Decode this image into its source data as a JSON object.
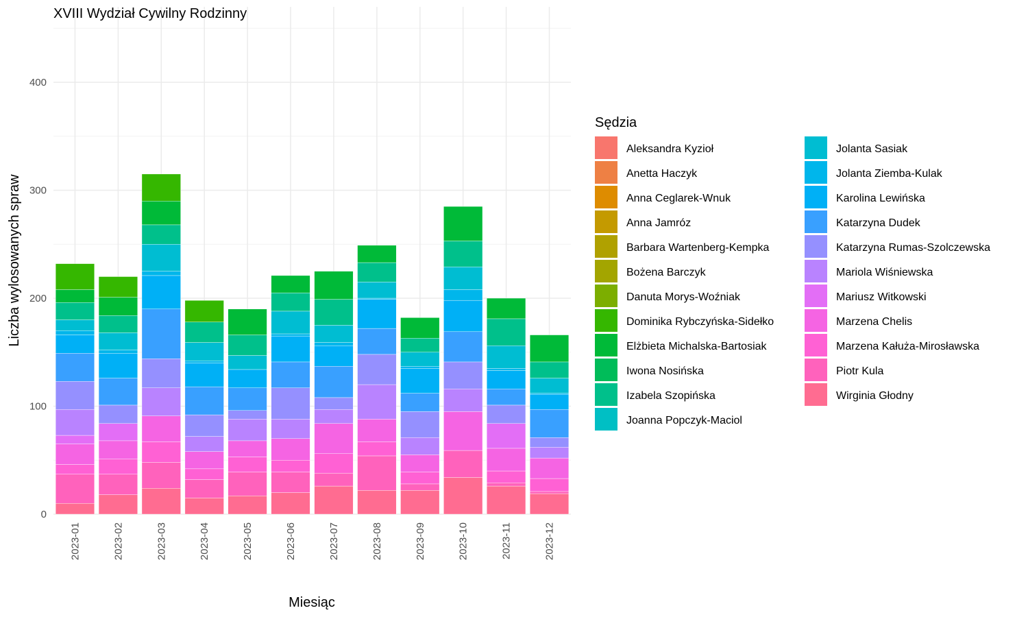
{
  "chart_data": {
    "type": "bar",
    "stacked": true,
    "title": "XVIII Wydział Cywilny Rodzinny",
    "xlabel": "Miesiąc",
    "ylabel": "Liczba wylosowanych spraw",
    "legend_title": "Sędzia",
    "legend_position": "right",
    "grid": true,
    "ylim": [
      0,
      460
    ],
    "yticks": [
      0,
      100,
      200,
      300,
      400
    ],
    "categories": [
      "2023-01",
      "2023-02",
      "2023-03",
      "2023-04",
      "2023-05",
      "2023-06",
      "2023-07",
      "2023-08",
      "2023-09",
      "2023-10",
      "2023-11",
      "2023-12"
    ],
    "series": [
      {
        "name": "Wirginia Głodny",
        "color": "#FF6C91",
        "values": [
          10,
          18,
          24,
          15,
          17,
          20,
          26,
          22,
          22,
          34,
          26,
          19
        ]
      },
      {
        "name": "Piotr Kula",
        "color": "#FF62BC",
        "values": [
          27,
          19,
          24,
          17,
          22,
          19,
          12,
          32,
          6,
          25,
          3,
          2
        ]
      },
      {
        "name": "Marzena Kałuża-Mirosławska",
        "color": "#FF61D4",
        "values": [
          9,
          14,
          19,
          10,
          14,
          11,
          18,
          13,
          11,
          0,
          11,
          12
        ]
      },
      {
        "name": "Marzena Chelis",
        "color": "#F564E3",
        "values": [
          19,
          17,
          24,
          16,
          15,
          20,
          28,
          21,
          16,
          36,
          21,
          19
        ]
      },
      {
        "name": "Mariusz Witkowski",
        "color": "#E36EF6",
        "values": [
          8,
          16,
          0,
          0,
          0,
          0,
          0,
          0,
          0,
          0,
          23,
          0
        ]
      },
      {
        "name": "Mariola Wiśniewska",
        "color": "#B983FF",
        "values": [
          24,
          0,
          26,
          14,
          20,
          18,
          13,
          32,
          16,
          21,
          0,
          10
        ]
      },
      {
        "name": "Katarzyna Rumas-Szolczewska",
        "color": "#9590FF",
        "values": [
          26,
          17,
          27,
          20,
          8,
          29,
          11,
          28,
          24,
          25,
          17,
          9
        ]
      },
      {
        "name": "Katarzyna Dudek",
        "color": "#39A0FF",
        "values": [
          26,
          25,
          46,
          26,
          21,
          24,
          29,
          24,
          17,
          28,
          15,
          26
        ]
      },
      {
        "name": "Karolina Lewińska",
        "color": "#00B0F6",
        "values": [
          17,
          23,
          31,
          22,
          17,
          24,
          19,
          27,
          23,
          29,
          17,
          14
        ]
      },
      {
        "name": "Jolanta Ziemba-Kulak",
        "color": "#00B6EB",
        "values": [
          4,
          3,
          4,
          2,
          0,
          2,
          3,
          1,
          2,
          10,
          2,
          1
        ]
      },
      {
        "name": "Jolanta Sasiak",
        "color": "#00BDD2",
        "values": [
          10,
          16,
          25,
          17,
          13,
          21,
          16,
          15,
          13,
          21,
          21,
          14
        ]
      },
      {
        "name": "Joanna Popczyk-Maciol",
        "color": "#00BFC4",
        "values": [
          0,
          0,
          0,
          0,
          0,
          0,
          0,
          0,
          0,
          0,
          0,
          0
        ]
      },
      {
        "name": "Izabela Szopińska",
        "color": "#00C08B",
        "values": [
          16,
          16,
          18,
          19,
          19,
          17,
          24,
          18,
          13,
          24,
          25,
          15
        ]
      },
      {
        "name": "Iwona Nosińska",
        "color": "#00BC59",
        "values": [
          0,
          0,
          0,
          0,
          0,
          0,
          0,
          0,
          0,
          0,
          0,
          0
        ]
      },
      {
        "name": "Elżbieta Michalska-Bartosiak",
        "color": "#00BA38",
        "values": [
          12,
          17,
          22,
          0,
          24,
          16,
          26,
          16,
          19,
          32,
          19,
          25
        ]
      },
      {
        "name": "Dominika Rybczyńska-Sidełko",
        "color": "#35B700",
        "values": [
          24,
          19,
          25,
          20,
          0,
          0,
          0,
          0,
          0,
          0,
          0,
          0
        ]
      },
      {
        "name": "Danuta Morys-Woźniak",
        "color": "#5BB300",
        "values": [
          0,
          0,
          0,
          0,
          0,
          0,
          0,
          0,
          0,
          0,
          0,
          0
        ]
      },
      {
        "name": "Bożena Barczyk",
        "color": "#7CAE00",
        "values": [
          0,
          0,
          0,
          0,
          0,
          0,
          0,
          0,
          0,
          0,
          0,
          0
        ]
      },
      {
        "name": "Barbara Wartenberg-Kempka",
        "color": "#A3A500",
        "values": [
          0,
          0,
          0,
          0,
          0,
          0,
          0,
          0,
          0,
          0,
          0,
          0
        ]
      },
      {
        "name": "Anna Jamróz",
        "color": "#C49A00",
        "values": [
          0,
          0,
          0,
          0,
          0,
          0,
          0,
          0,
          0,
          0,
          0,
          0
        ]
      },
      {
        "name": "Anna Ceglarek-Wnuk",
        "color": "#DE8C00",
        "values": [
          0,
          0,
          0,
          0,
          0,
          0,
          0,
          0,
          0,
          0,
          0,
          0
        ]
      },
      {
        "name": "Anetta Haczyk",
        "color": "#EE8044",
        "values": [
          0,
          0,
          0,
          0,
          0,
          0,
          0,
          0,
          0,
          0,
          0,
          0
        ]
      },
      {
        "name": "Aleksandra Kyzioł",
        "color": "#F8766D",
        "values": [
          0,
          0,
          0,
          0,
          0,
          0,
          0,
          0,
          0,
          0,
          0,
          0
        ]
      }
    ]
  },
  "legend": {
    "column1": [
      {
        "label": "Aleksandra Kyzioł",
        "color": "#F8766D"
      },
      {
        "label": "Anetta Haczyk",
        "color": "#EE8044"
      },
      {
        "label": "Anna Ceglarek-Wnuk",
        "color": "#DE8C00"
      },
      {
        "label": "Anna Jamróz",
        "color": "#C49A00"
      },
      {
        "label": "Barbara Wartenberg-Kempka",
        "color": "#B0A100"
      },
      {
        "label": "Bożena Barczyk",
        "color": "#A3A500"
      },
      {
        "label": "Danuta Morys-Woźniak",
        "color": "#7CAE00"
      },
      {
        "label": "Dominika Rybczyńska-Sidełko",
        "color": "#35B700"
      },
      {
        "label": "Elżbieta Michalska-Bartosiak",
        "color": "#00BA38"
      },
      {
        "label": "Iwona Nosińska",
        "color": "#00BC59"
      },
      {
        "label": "Izabela Szopińska",
        "color": "#00C08B"
      },
      {
        "label": "Joanna Popczyk-Maciol",
        "color": "#00BFC4"
      }
    ],
    "column2": [
      {
        "label": "Jolanta Sasiak",
        "color": "#00BDD2"
      },
      {
        "label": "Jolanta Ziemba-Kulak",
        "color": "#00B6EB"
      },
      {
        "label": "Karolina Lewińska",
        "color": "#00B0F6"
      },
      {
        "label": "Katarzyna Dudek",
        "color": "#39A0FF"
      },
      {
        "label": "Katarzyna Rumas-Szolczewska",
        "color": "#9590FF"
      },
      {
        "label": "Mariola Wiśniewska",
        "color": "#B983FF"
      },
      {
        "label": "Mariusz Witkowski",
        "color": "#E36EF6"
      },
      {
        "label": "Marzena Chelis",
        "color": "#F564E3"
      },
      {
        "label": "Marzena Kałuża-Mirosławska",
        "color": "#FF61D4"
      },
      {
        "label": "Piotr Kula",
        "color": "#FF62BC"
      },
      {
        "label": "Wirginia Głodny",
        "color": "#FF6C91"
      }
    ]
  }
}
